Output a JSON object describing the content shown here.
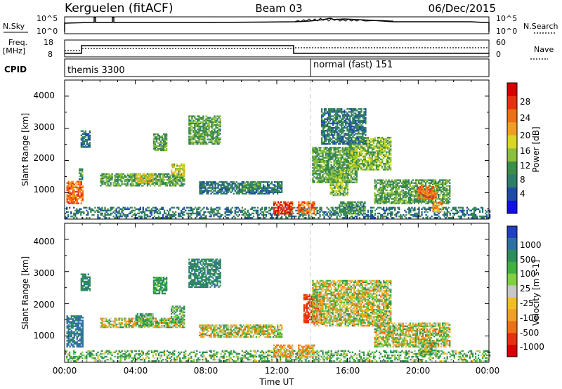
{
  "header": {
    "station": "Kerguelen (fitACF)",
    "beam": "Beam 03",
    "date": "06/Dec/2015"
  },
  "noise_panel": {
    "left_label": "N.Sky",
    "right_label": "N.Search",
    "left_ticks": [
      "10^5",
      "10^0"
    ],
    "right_ticks": [
      "10^5",
      "10^0"
    ]
  },
  "freq_panel": {
    "left_label_1": "Freq.",
    "left_label_2": "[MHz]",
    "right_label": "Nave",
    "left_ticks": [
      "18",
      "8"
    ],
    "right_ticks": [
      "60",
      "0"
    ]
  },
  "cpid_panel": {
    "label": "CPID",
    "modes": [
      {
        "name": "themis 3300",
        "start_hour": 0
      },
      {
        "name": "normal (fast) 151",
        "start_hour": 14
      }
    ]
  },
  "time_axis": {
    "label": "Time UT",
    "ticks": [
      "00:00",
      "04:00",
      "08:00",
      "12:00",
      "16:00",
      "20:00",
      "00:00"
    ]
  },
  "chart_data": [
    {
      "type": "heatmap",
      "title": "",
      "xlabel": "Time UT",
      "ylabel": "Slant Range [km]",
      "xlim_hours": [
        0,
        24
      ],
      "ylim_km": [
        180,
        4500
      ],
      "y_ticks": [
        "1000",
        "2000",
        "3000",
        "4000"
      ],
      "colorbar": {
        "label": "Power [dB]",
        "ticks": [
          "4",
          "8",
          "12",
          "16",
          "20",
          "24",
          "28"
        ],
        "colors": [
          "#1010e6",
          "#1e4aa8",
          "#2e7d6a",
          "#3c8c4a",
          "#8cbf3a",
          "#d8d820",
          "#f0a020",
          "#f07010",
          "#e83010",
          "#d80000"
        ]
      },
      "echo_regions": [
        {
          "t_start": 0.0,
          "t_end": 24.0,
          "range_start": 200,
          "range_end": 550,
          "value": 8
        },
        {
          "t_start": 0.1,
          "t_end": 1.0,
          "range_start": 650,
          "range_end": 1350,
          "value": 24
        },
        {
          "t_start": 0.8,
          "t_end": 1.0,
          "range_start": 1400,
          "range_end": 1750,
          "value": 10
        },
        {
          "t_start": 0.9,
          "t_end": 1.4,
          "range_start": 2400,
          "range_end": 2900,
          "value": 8
        },
        {
          "t_start": 2.0,
          "t_end": 6.8,
          "range_start": 1200,
          "range_end": 1600,
          "value": 12
        },
        {
          "t_start": 4.0,
          "t_end": 5.0,
          "range_start": 1300,
          "range_end": 1600,
          "value": 18
        },
        {
          "t_start": 6.0,
          "t_end": 6.8,
          "range_start": 1500,
          "range_end": 1900,
          "value": 16
        },
        {
          "t_start": 5.0,
          "t_end": 5.8,
          "range_start": 2300,
          "range_end": 2800,
          "value": 12
        },
        {
          "t_start": 7.0,
          "t_end": 8.8,
          "range_start": 2500,
          "range_end": 3400,
          "value": 12
        },
        {
          "t_start": 7.6,
          "t_end": 12.3,
          "range_start": 950,
          "range_end": 1350,
          "value": 8
        },
        {
          "t_start": 10.0,
          "t_end": 11.0,
          "range_start": 1100,
          "range_end": 1300,
          "value": 12
        },
        {
          "t_start": 11.8,
          "t_end": 12.9,
          "range_start": 330,
          "range_end": 700,
          "value": 28
        },
        {
          "t_start": 13.2,
          "t_end": 14.1,
          "range_start": 330,
          "range_end": 700,
          "value": 24
        },
        {
          "t_start": 14.0,
          "t_end": 16.5,
          "range_start": 1300,
          "range_end": 2400,
          "value": 12
        },
        {
          "t_start": 15.0,
          "t_end": 16.0,
          "range_start": 900,
          "range_end": 1700,
          "value": 14
        },
        {
          "t_start": 16.0,
          "t_end": 18.4,
          "range_start": 1700,
          "range_end": 2700,
          "value": 14
        },
        {
          "t_start": 14.5,
          "t_end": 17.0,
          "range_start": 2500,
          "range_end": 3600,
          "value": 8
        },
        {
          "t_start": 17.5,
          "t_end": 21.8,
          "range_start": 650,
          "range_end": 1400,
          "value": 12
        },
        {
          "t_start": 20.0,
          "t_end": 21.0,
          "range_start": 800,
          "range_end": 1200,
          "value": 24
        },
        {
          "t_start": 20.8,
          "t_end": 21.3,
          "range_start": 400,
          "range_end": 700,
          "value": 22
        },
        {
          "t_start": 15.5,
          "t_end": 17.0,
          "range_start": 330,
          "range_end": 700,
          "value": 10
        }
      ]
    },
    {
      "type": "heatmap",
      "title": "",
      "xlabel": "Time UT",
      "ylabel": "Slant Range [km]",
      "xlim_hours": [
        0,
        24
      ],
      "ylim_km": [
        180,
        4500
      ],
      "y_ticks": [
        "1000",
        "2000",
        "3000",
        "4000"
      ],
      "colorbar": {
        "label": "Velocity [m s-1]",
        "ticks": [
          "1000",
          "500",
          "100",
          "25",
          "-25",
          "-100",
          "-500",
          "-1000"
        ],
        "colors": [
          "#2040c0",
          "#2e70a0",
          "#2e8c5a",
          "#40b040",
          "#80d040",
          "#c8c8c8",
          "#f0c020",
          "#f0a020",
          "#f07010",
          "#e83010",
          "#d80000"
        ]
      },
      "echo_regions": [
        {
          "t_start": 0.0,
          "t_end": 24.0,
          "range_start": 200,
          "range_end": 550,
          "value": 60
        },
        {
          "t_start": 0.1,
          "t_end": 1.0,
          "range_start": 650,
          "range_end": 1600,
          "value": 300
        },
        {
          "t_start": 0.9,
          "t_end": 1.4,
          "range_start": 2400,
          "range_end": 2900,
          "value": 200
        },
        {
          "t_start": 2.0,
          "t_end": 6.8,
          "range_start": 1250,
          "range_end": 1550,
          "value": 0
        },
        {
          "t_start": 4.0,
          "t_end": 5.0,
          "range_start": 1300,
          "range_end": 1700,
          "value": 80
        },
        {
          "t_start": 6.0,
          "t_end": 6.8,
          "range_start": 1400,
          "range_end": 1900,
          "value": 80
        },
        {
          "t_start": 5.0,
          "t_end": 5.8,
          "range_start": 2300,
          "range_end": 2800,
          "value": 120
        },
        {
          "t_start": 7.0,
          "t_end": 8.8,
          "range_start": 2500,
          "range_end": 3400,
          "value": 200
        },
        {
          "t_start": 7.6,
          "t_end": 12.3,
          "range_start": 950,
          "range_end": 1350,
          "value": 0
        },
        {
          "t_start": 11.8,
          "t_end": 12.9,
          "range_start": 330,
          "range_end": 700,
          "value": -60
        },
        {
          "t_start": 13.2,
          "t_end": 14.1,
          "range_start": 330,
          "range_end": 700,
          "value": -60
        },
        {
          "t_start": 13.5,
          "t_end": 14.5,
          "range_start": 1400,
          "range_end": 2300,
          "value": -300
        },
        {
          "t_start": 14.0,
          "t_end": 18.4,
          "range_start": 1300,
          "range_end": 2700,
          "value": 0
        },
        {
          "t_start": 17.5,
          "t_end": 21.8,
          "range_start": 650,
          "range_end": 1400,
          "value": 0
        },
        {
          "t_start": 20.0,
          "t_end": 21.0,
          "range_start": 400,
          "range_end": 800,
          "value": 40
        }
      ]
    }
  ],
  "colors": {
    "axis": "#000000",
    "mode_change_line": "#c8c8c8"
  }
}
